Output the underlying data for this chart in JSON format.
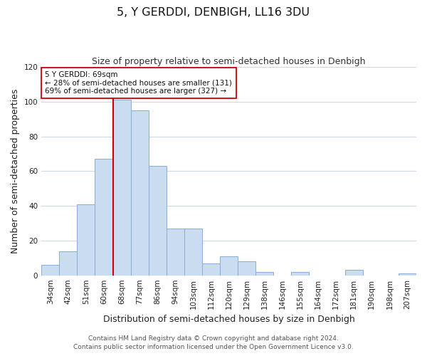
{
  "title": "5, Y GERDDI, DENBIGH, LL16 3DU",
  "subtitle": "Size of property relative to semi-detached houses in Denbigh",
  "xlabel": "Distribution of semi-detached houses by size in Denbigh",
  "ylabel": "Number of semi-detached properties",
  "categories": [
    "34sqm",
    "42sqm",
    "51sqm",
    "60sqm",
    "68sqm",
    "77sqm",
    "86sqm",
    "94sqm",
    "103sqm",
    "112sqm",
    "120sqm",
    "129sqm",
    "138sqm",
    "146sqm",
    "155sqm",
    "164sqm",
    "172sqm",
    "181sqm",
    "190sqm",
    "198sqm",
    "207sqm"
  ],
  "values": [
    6,
    14,
    41,
    67,
    101,
    95,
    63,
    27,
    27,
    7,
    11,
    8,
    2,
    0,
    2,
    0,
    0,
    3,
    0,
    0,
    1
  ],
  "bar_color": "#c9dcf0",
  "bar_edge_color": "#8aaed4",
  "highlight_index": 4,
  "highlight_line_color": "#cc0000",
  "annotation_line1": "5 Y GERDDI: 69sqm",
  "annotation_line2": "← 28% of semi-detached houses are smaller (131)",
  "annotation_line3": "69% of semi-detached houses are larger (327) →",
  "annotation_box_color": "#ffffff",
  "annotation_box_edge": "#cc0000",
  "ylim": [
    0,
    120
  ],
  "yticks": [
    0,
    20,
    40,
    60,
    80,
    100,
    120
  ],
  "footer_line1": "Contains HM Land Registry data © Crown copyright and database right 2024.",
  "footer_line2": "Contains public sector information licensed under the Open Government Licence v3.0.",
  "bg_color": "#ffffff",
  "grid_color": "#ccd9e8",
  "title_fontsize": 11.5,
  "subtitle_fontsize": 9,
  "axis_label_fontsize": 9,
  "tick_fontsize": 7.5,
  "footer_fontsize": 6.5
}
